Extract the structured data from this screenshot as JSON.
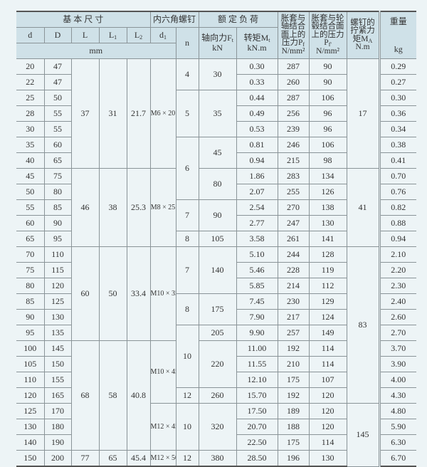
{
  "header": {
    "basic_dims": "基 本 尺 寸",
    "screw": "内六角螺钉",
    "rated_load": "额 定 负 荷",
    "pf_label": "胀套与轴结合面上的压力P",
    "pf_sub": "f",
    "pf_unit": "N/mm²",
    "pf2_label": "胀套与轮毂结合面上的压力P",
    "pf2_sub": "f'",
    "pf2_unit": "N/mm²",
    "ma_label": "螺钉的拧紧力矩M",
    "ma_sub": "A",
    "ma_unit": "N.m",
    "weight": "重量",
    "weight_unit": "kg",
    "d": "d",
    "D": "D",
    "L": "L",
    "L1": "L",
    "L1_sub": "1",
    "L2": "L",
    "L2_sub": "2",
    "d1": "d",
    "d1_sub": "1",
    "n": "n",
    "ft_label": "轴向力F",
    "ft_sub": "t",
    "ft_unit": "kN",
    "mt_label": "转矩M",
    "mt_sub": "t",
    "mt_unit": "kN.m",
    "mm": "mm"
  },
  "columns": {
    "d": [
      "20",
      "22",
      "25",
      "28",
      "30",
      "35",
      "40",
      "45",
      "50",
      "55",
      "60",
      "65",
      "70",
      "75",
      "80",
      "85",
      "90",
      "95",
      "100",
      "105",
      "110",
      "120",
      "125",
      "130",
      "140",
      "150"
    ],
    "D": [
      "47",
      "47",
      "50",
      "55",
      "55",
      "60",
      "65",
      "75",
      "80",
      "85",
      "90",
      "95",
      "110",
      "115",
      "120",
      "125",
      "130",
      "135",
      "145",
      "150",
      "155",
      "165",
      "170",
      "180",
      "190",
      "200"
    ],
    "L": [
      {
        "v": "37",
        "rows": 7
      },
      {
        "v": "46",
        "rows": 5
      },
      {
        "v": "60",
        "rows": 6
      },
      {
        "v": "68",
        "rows": 7
      },
      {
        "v": "77",
        "rows": 1
      }
    ],
    "L1": [
      {
        "v": "31",
        "rows": 7
      },
      {
        "v": "38",
        "rows": 5
      },
      {
        "v": "50",
        "rows": 6
      },
      {
        "v": "58",
        "rows": 7
      },
      {
        "v": "65",
        "rows": 1
      }
    ],
    "L2": [
      {
        "v": "21.7",
        "rows": 7
      },
      {
        "v": "25.3",
        "rows": 5
      },
      {
        "v": "33.4",
        "rows": 6
      },
      {
        "v": "40.8",
        "rows": 7
      },
      {
        "v": "45.4",
        "rows": 1
      }
    ],
    "d1": [
      {
        "v": "M6 × 20",
        "rows": 7
      },
      {
        "v": "M8 × 25",
        "rows": 5
      },
      {
        "v": "M10 × 35",
        "rows": 6
      },
      {
        "v": "M10 × 45",
        "rows": 4
      },
      {
        "v": "M12 × 45",
        "rows": 3
      },
      {
        "v": "M12 × 50",
        "rows": 1
      }
    ],
    "n": [
      {
        "v": "4",
        "rows": 2
      },
      {
        "v": "5",
        "rows": 3
      },
      {
        "v": "6",
        "rows": 4
      },
      {
        "v": "7",
        "rows": 2
      },
      {
        "v": "8",
        "rows": 1
      },
      {
        "v": "7",
        "rows": 3
      },
      {
        "v": "8",
        "rows": 2
      },
      {
        "v": "10",
        "rows": 4
      },
      {
        "v": "12",
        "rows": 1
      },
      {
        "v": "10",
        "rows": 3
      },
      {
        "v": "12",
        "rows": 1
      }
    ],
    "Ft": [
      {
        "v": "30",
        "rows": 2
      },
      {
        "v": "35",
        "rows": 3
      },
      {
        "v": "45",
        "rows": 2
      },
      {
        "v": "80",
        "rows": 2
      },
      {
        "v": "90",
        "rows": 2
      },
      {
        "v": "105",
        "rows": 1
      },
      {
        "v": "140",
        "rows": 3
      },
      {
        "v": "175",
        "rows": 2
      },
      {
        "v": "205",
        "rows": 1
      },
      {
        "v": "220",
        "rows": 3
      },
      {
        "v": "260",
        "rows": 1
      },
      {
        "v": "320",
        "rows": 3
      },
      {
        "v": "380",
        "rows": 1
      }
    ],
    "Mt": [
      "0.30",
      "0.33",
      "0.44",
      "0.49",
      "0.53",
      "0.81",
      "0.94",
      "1.86",
      "2.07",
      "2.54",
      "2.77",
      "3.58",
      "5.10",
      "5.46",
      "5.85",
      "7.45",
      "7.90",
      "9.90",
      "11.00",
      "11.55",
      "12.10",
      "15.70",
      "17.50",
      "20.70",
      "22.50",
      "28.50"
    ],
    "Pf": [
      "287",
      "260",
      "287",
      "256",
      "239",
      "246",
      "215",
      "283",
      "255",
      "270",
      "247",
      "261",
      "244",
      "228",
      "214",
      "230",
      "217",
      "257",
      "192",
      "210",
      "175",
      "192",
      "189",
      "188",
      "175",
      "196"
    ],
    "Pf2": [
      "90",
      "90",
      "106",
      "96",
      "96",
      "106",
      "98",
      "134",
      "126",
      "138",
      "130",
      "141",
      "128",
      "119",
      "112",
      "129",
      "124",
      "149",
      "114",
      "114",
      "107",
      "120",
      "120",
      "120",
      "114",
      "130"
    ],
    "MA": [
      {
        "v": "17",
        "rows": 7
      },
      {
        "v": "41",
        "rows": 5
      },
      {
        "v": "83",
        "rows": 10
      },
      {
        "v": "145",
        "rows": 4
      }
    ],
    "kg": [
      "0.29",
      "0.27",
      "0.30",
      "0.36",
      "0.34",
      "0.38",
      "0.41",
      "0.70",
      "0.76",
      "0.82",
      "0.88",
      "0.94",
      "2.10",
      "2.20",
      "2.30",
      "2.40",
      "2.60",
      "2.70",
      "3.70",
      "3.90",
      "4.00",
      "4.30",
      "4.80",
      "5.90",
      "6.30",
      "6.70"
    ]
  }
}
